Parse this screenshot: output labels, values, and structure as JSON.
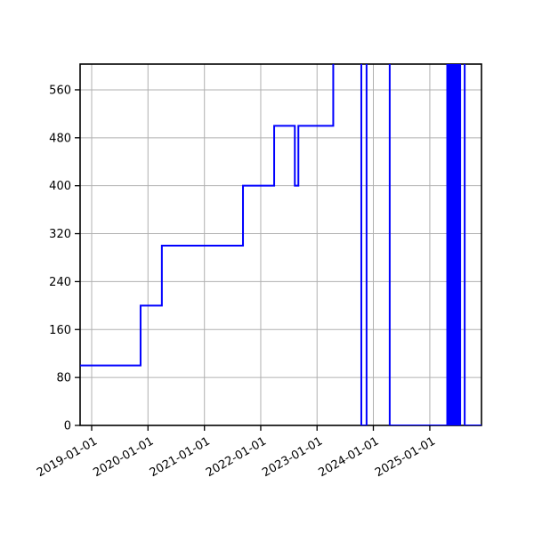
{
  "figure": {
    "background": "#ffffff",
    "title": ""
  },
  "chart_data": {
    "type": "line",
    "subtype": "step-time-series",
    "title": "",
    "xlabel": "",
    "ylabel": "",
    "legend": null,
    "grid": true,
    "grid_color": "#b0b0b0",
    "line_color": "#0000ff",
    "line_width": 2,
    "axes_color": "#000000",
    "x_tick_labels": [
      "2019-01-01",
      "2020-01-01",
      "2021-01-01",
      "2022-01-01",
      "2023-01-01",
      "2024-01-01",
      "2025-01-01"
    ],
    "x_tick_rotation_deg": 30,
    "y_ticks": [
      0,
      80,
      160,
      240,
      320,
      400,
      480,
      560
    ],
    "x_domain": [
      "2018-10-18",
      "2025-12-02"
    ],
    "ylim": [
      0,
      603
    ],
    "series": [
      {
        "description": "step changes as [date, new_value]; value above ylim top (620) is clipped at the axes top edge",
        "step_events": [
          [
            "2018-10-18",
            100
          ],
          [
            "2019-11-14",
            200
          ],
          [
            "2020-03-31",
            300
          ],
          [
            "2021-09-08",
            400
          ],
          [
            "2022-03-29",
            500
          ],
          [
            "2022-08-10",
            400
          ],
          [
            "2022-09-02",
            500
          ],
          [
            "2023-04-16",
            620
          ],
          [
            "2023-10-15",
            0
          ],
          [
            "2023-11-18",
            620
          ],
          [
            "2024-04-16",
            0
          ],
          [
            "2025-04-24",
            620
          ],
          [
            "2025-05-01",
            0
          ],
          [
            "2025-05-08",
            620
          ],
          [
            "2025-05-15",
            0
          ],
          [
            "2025-05-22",
            620
          ],
          [
            "2025-05-29",
            0
          ],
          [
            "2025-06-05",
            620
          ],
          [
            "2025-06-12",
            0
          ],
          [
            "2025-06-19",
            620
          ],
          [
            "2025-06-26",
            0
          ],
          [
            "2025-07-03",
            620
          ],
          [
            "2025-07-10",
            0
          ],
          [
            "2025-07-17",
            620
          ],
          [
            "2025-08-15",
            0
          ]
        ],
        "end_date": "2025-12-02"
      }
    ]
  }
}
